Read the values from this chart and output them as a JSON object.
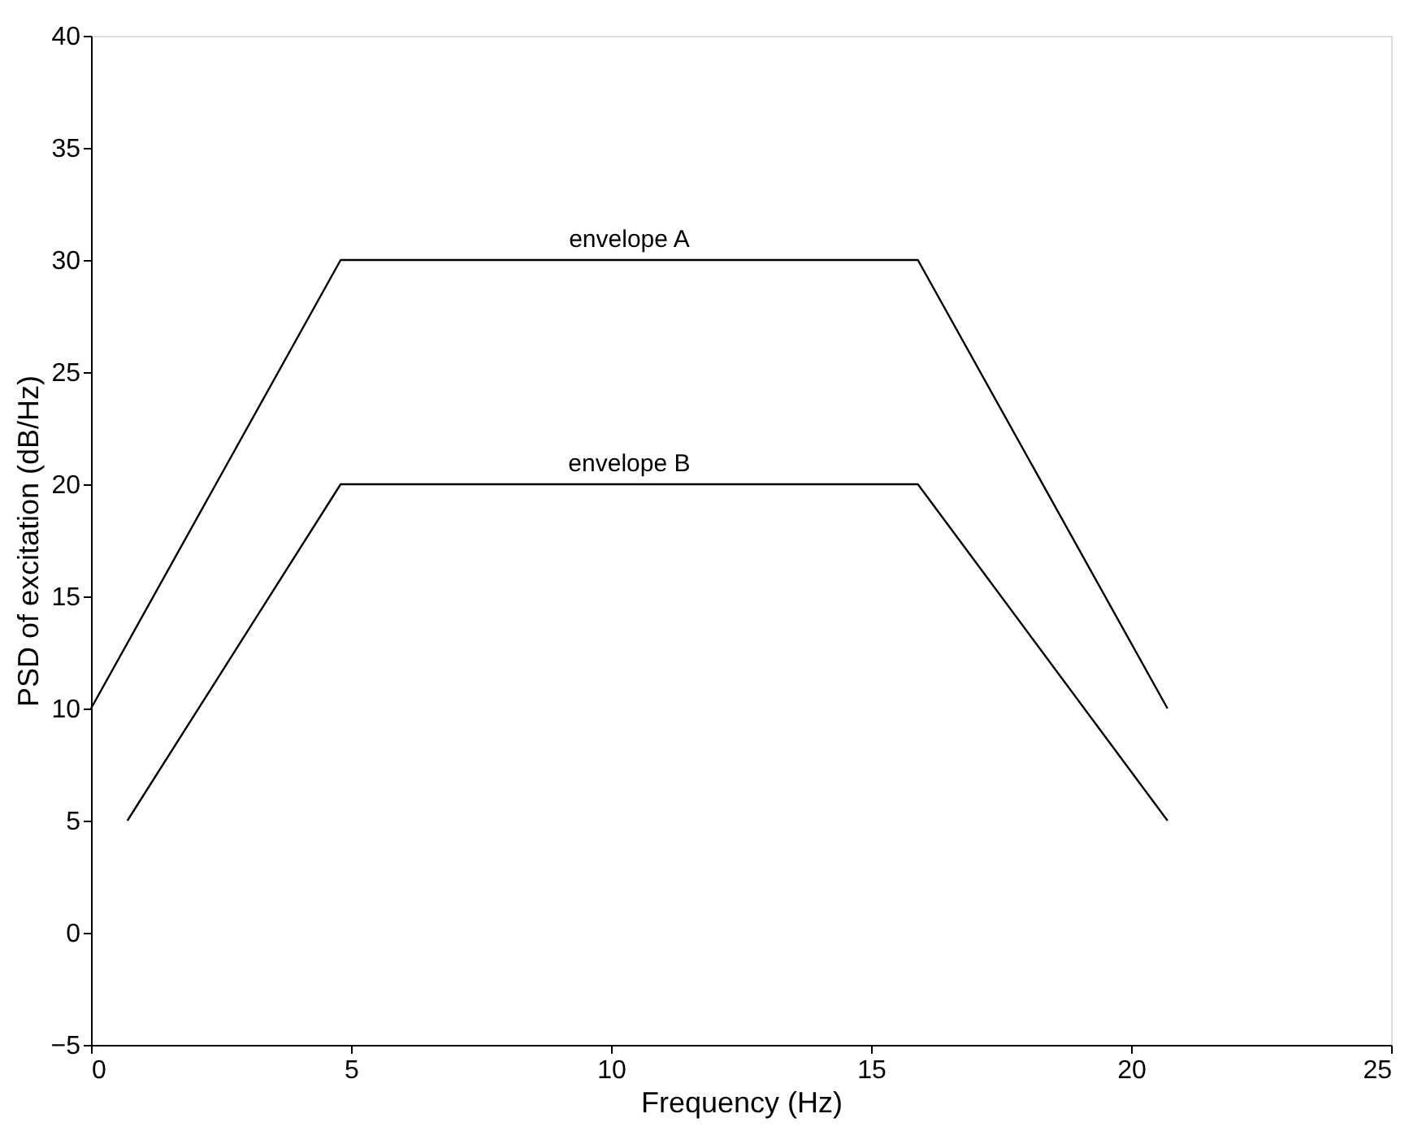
{
  "chart_data": {
    "type": "line",
    "xlabel": "Frequency (Hz)",
    "ylabel": "PSD of excitation (dB/Hz)",
    "xlim": [
      0,
      25
    ],
    "xticks": [
      0,
      5,
      10,
      15,
      20,
      25
    ],
    "ylim": [
      -5,
      40
    ],
    "yticks": [
      -5,
      0,
      5,
      10,
      15,
      20,
      25,
      30,
      35,
      40
    ],
    "grid": false,
    "marker": "none",
    "line_style": "solid",
    "series": [
      {
        "name": "envelope A",
        "color": "#000000",
        "x": [
          0,
          4.8,
          15.9,
          20.7
        ],
        "values": [
          10,
          30,
          30,
          10
        ]
      },
      {
        "name": "envelope B",
        "color": "#000000",
        "x": [
          0.7,
          4.8,
          15.9,
          20.7
        ],
        "values": [
          5,
          20,
          20,
          5
        ]
      }
    ]
  }
}
